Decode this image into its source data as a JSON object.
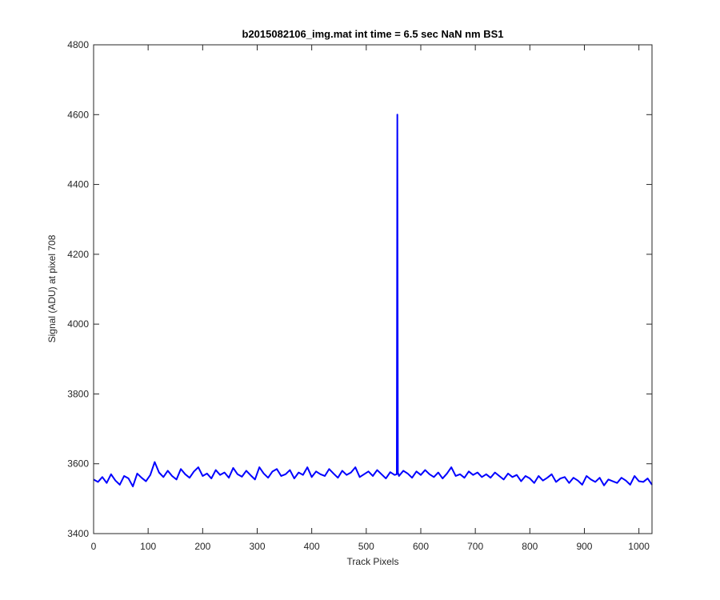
{
  "chart_data": {
    "type": "line",
    "title": "b2015082106_img.mat int time = 6.5 sec  NaN nm BS1",
    "xlabel": "Track Pixels",
    "ylabel": "Signal (ADU) at pixel 708",
    "color": "#0000ff",
    "xlim": [
      0,
      1024
    ],
    "ylim": [
      3400,
      4800
    ],
    "xticks": [
      0,
      100,
      200,
      300,
      400,
      500,
      600,
      700,
      800,
      900,
      1000
    ],
    "yticks": [
      3400,
      3600,
      3800,
      4000,
      4200,
      4400,
      4600,
      4800
    ],
    "x": [
      0,
      8,
      16,
      24,
      32,
      40,
      48,
      56,
      64,
      72,
      80,
      88,
      96,
      104,
      112,
      120,
      128,
      136,
      144,
      152,
      160,
      168,
      176,
      184,
      192,
      200,
      208,
      216,
      224,
      232,
      240,
      248,
      256,
      264,
      272,
      280,
      288,
      296,
      304,
      312,
      320,
      328,
      336,
      344,
      352,
      360,
      368,
      376,
      384,
      392,
      400,
      408,
      416,
      424,
      432,
      440,
      448,
      456,
      464,
      472,
      480,
      488,
      496,
      504,
      512,
      520,
      528,
      536,
      544,
      552,
      556,
      557,
      558,
      560,
      568,
      576,
      584,
      592,
      600,
      608,
      616,
      624,
      632,
      640,
      648,
      656,
      664,
      672,
      680,
      688,
      696,
      704,
      712,
      720,
      728,
      736,
      744,
      752,
      760,
      768,
      776,
      784,
      792,
      800,
      808,
      816,
      824,
      832,
      840,
      848,
      856,
      864,
      872,
      880,
      888,
      896,
      904,
      912,
      920,
      928,
      936,
      944,
      952,
      960,
      968,
      976,
      984,
      992,
      1000,
      1008,
      1016,
      1024
    ],
    "values": [
      3555,
      3548,
      3562,
      3545,
      3570,
      3552,
      3540,
      3565,
      3558,
      3535,
      3572,
      3560,
      3550,
      3568,
      3605,
      3575,
      3562,
      3580,
      3565,
      3555,
      3585,
      3570,
      3560,
      3578,
      3590,
      3565,
      3572,
      3558,
      3582,
      3568,
      3575,
      3560,
      3588,
      3570,
      3563,
      3580,
      3567,
      3555,
      3590,
      3572,
      3560,
      3578,
      3585,
      3565,
      3570,
      3582,
      3558,
      3575,
      3568,
      3590,
      3562,
      3578,
      3570,
      3565,
      3585,
      3572,
      3560,
      3580,
      3568,
      3575,
      3590,
      3562,
      3570,
      3578,
      3565,
      3582,
      3570,
      3558,
      3576,
      3568,
      3570,
      4600,
      3575,
      3565,
      3580,
      3572,
      3560,
      3578,
      3568,
      3582,
      3570,
      3562,
      3575,
      3558,
      3572,
      3590,
      3565,
      3570,
      3560,
      3578,
      3568,
      3575,
      3562,
      3570,
      3560,
      3575,
      3565,
      3555,
      3572,
      3562,
      3568,
      3550,
      3565,
      3558,
      3545,
      3565,
      3552,
      3560,
      3570,
      3548,
      3558,
      3562,
      3545,
      3560,
      3552,
      3540,
      3565,
      3555,
      3548,
      3560,
      3538,
      3555,
      3550,
      3545,
      3560,
      3552,
      3540,
      3565,
      3550,
      3548,
      3558,
      3540
    ]
  }
}
